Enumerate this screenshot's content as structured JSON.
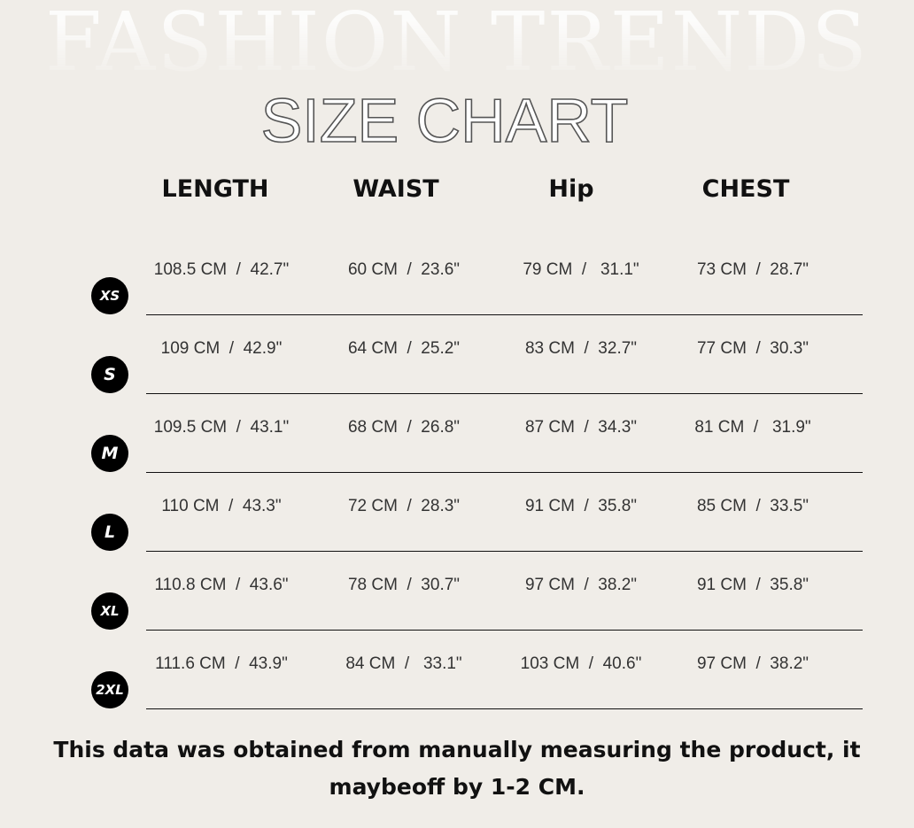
{
  "background_text": "FASHION TRENDS",
  "title": "SIZE CHART",
  "headers": [
    "LENGTH",
    "WAIST",
    "Hip",
    "CHEST"
  ],
  "rows": [
    {
      "size": "XS",
      "values": [
        "108.5 CM  /  42.7\"",
        "60 CM  /  23.6\"",
        "79 CM  /   31.1\"",
        "73 CM  /  28.7\""
      ]
    },
    {
      "size": "S",
      "values": [
        "109 CM  /  42.9\"",
        "64 CM  /  25.2\"",
        "83 CM  /  32.7\"",
        "77 CM  /  30.3\""
      ]
    },
    {
      "size": "M",
      "values": [
        "109.5 CM  /  43.1\"",
        "68 CM  /  26.8\"",
        "87 CM  /  34.3\"",
        "81 CM  /   31.9\""
      ]
    },
    {
      "size": "L",
      "values": [
        "110 CM  /  43.3\"",
        "72 CM  /  28.3\"",
        "91 CM  /  35.8\"",
        "85 CM  /  33.5\""
      ]
    },
    {
      "size": "XL",
      "values": [
        "110.8 CM  /  43.6\"",
        "78 CM  /  30.7\"",
        "97 CM  /  38.2\"",
        "91 CM  /  35.8\""
      ]
    },
    {
      "size": "2XL",
      "values": [
        "111.6 CM  /  43.9\"",
        "84 CM  /   33.1\"",
        "103 CM  /  40.6\"",
        "97 CM  /  38.2\""
      ]
    }
  ],
  "note": "This data was obtained from manually measuring the product, it maybeoff by 1-2 CM.",
  "colors": {
    "background": "#f0ede8",
    "badge": "#000000",
    "text": "#333333"
  }
}
